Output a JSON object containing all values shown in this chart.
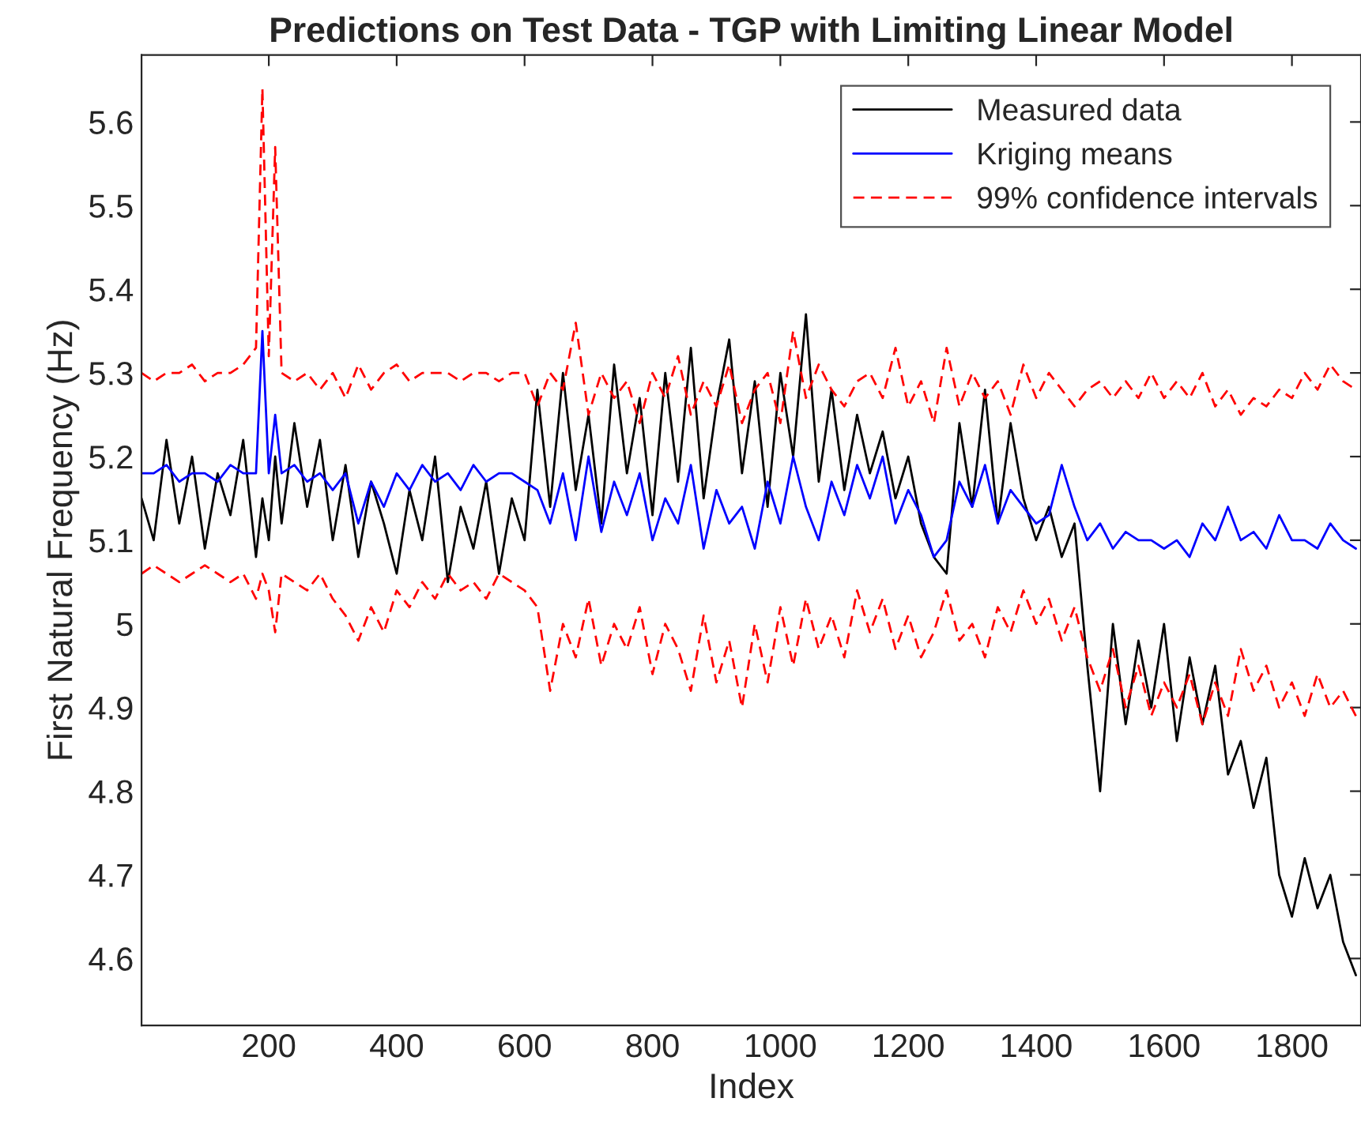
{
  "chart_data": {
    "type": "line",
    "title": "Predictions on Test Data - TGP with Limiting Linear Model",
    "xlabel": "Index",
    "ylabel": "First Natural Frequency (Hz)",
    "x": [
      1,
      20,
      40,
      60,
      80,
      100,
      120,
      140,
      160,
      180,
      190,
      200,
      210,
      220,
      240,
      260,
      280,
      300,
      320,
      340,
      360,
      380,
      400,
      420,
      440,
      460,
      480,
      500,
      520,
      540,
      560,
      580,
      600,
      620,
      640,
      660,
      680,
      700,
      720,
      740,
      760,
      780,
      800,
      820,
      840,
      860,
      880,
      900,
      920,
      940,
      960,
      980,
      1000,
      1020,
      1040,
      1060,
      1080,
      1100,
      1120,
      1140,
      1160,
      1180,
      1200,
      1220,
      1240,
      1260,
      1280,
      1300,
      1320,
      1340,
      1360,
      1380,
      1400,
      1420,
      1440,
      1460,
      1480,
      1500,
      1520,
      1540,
      1560,
      1580,
      1600,
      1620,
      1640,
      1660,
      1680,
      1700,
      1720,
      1740,
      1760,
      1780,
      1800,
      1820,
      1840,
      1860,
      1880,
      1900
    ],
    "series": [
      {
        "name": "Measured data",
        "color": "#000000",
        "line_style": "solid",
        "values": [
          5.15,
          5.1,
          5.22,
          5.12,
          5.2,
          5.09,
          5.18,
          5.13,
          5.22,
          5.08,
          5.15,
          5.1,
          5.2,
          5.12,
          5.24,
          5.14,
          5.22,
          5.1,
          5.19,
          5.08,
          5.17,
          5.12,
          5.06,
          5.16,
          5.1,
          5.2,
          5.05,
          5.14,
          5.09,
          5.17,
          5.06,
          5.15,
          5.1,
          5.28,
          5.14,
          5.3,
          5.16,
          5.25,
          5.12,
          5.31,
          5.18,
          5.27,
          5.13,
          5.3,
          5.17,
          5.33,
          5.15,
          5.26,
          5.34,
          5.18,
          5.29,
          5.14,
          5.3,
          5.2,
          5.37,
          5.17,
          5.28,
          5.16,
          5.25,
          5.18,
          5.23,
          5.15,
          5.2,
          5.12,
          5.08,
          5.06,
          5.24,
          5.14,
          5.28,
          5.12,
          5.24,
          5.15,
          5.1,
          5.14,
          5.08,
          5.12,
          4.95,
          4.8,
          5.0,
          4.88,
          4.98,
          4.9,
          5.0,
          4.86,
          4.96,
          4.88,
          4.95,
          4.82,
          4.86,
          4.78,
          4.84,
          4.7,
          4.65,
          4.72,
          4.66,
          4.7,
          4.62,
          4.58
        ]
      },
      {
        "name": "Kriging means",
        "color": "#0000ff",
        "line_style": "solid",
        "values": [
          5.18,
          5.18,
          5.19,
          5.17,
          5.18,
          5.18,
          5.17,
          5.19,
          5.18,
          5.18,
          5.35,
          5.18,
          5.25,
          5.18,
          5.19,
          5.17,
          5.18,
          5.16,
          5.18,
          5.12,
          5.17,
          5.14,
          5.18,
          5.16,
          5.19,
          5.17,
          5.18,
          5.16,
          5.19,
          5.17,
          5.18,
          5.18,
          5.17,
          5.16,
          5.12,
          5.18,
          5.1,
          5.2,
          5.11,
          5.17,
          5.13,
          5.18,
          5.1,
          5.15,
          5.12,
          5.19,
          5.09,
          5.16,
          5.12,
          5.14,
          5.09,
          5.17,
          5.12,
          5.2,
          5.14,
          5.1,
          5.17,
          5.13,
          5.19,
          5.15,
          5.2,
          5.12,
          5.16,
          5.13,
          5.08,
          5.1,
          5.17,
          5.14,
          5.19,
          5.12,
          5.16,
          5.14,
          5.12,
          5.13,
          5.19,
          5.14,
          5.1,
          5.12,
          5.09,
          5.11,
          5.1,
          5.1,
          5.09,
          5.1,
          5.08,
          5.12,
          5.1,
          5.14,
          5.1,
          5.11,
          5.09,
          5.13,
          5.1,
          5.1,
          5.09,
          5.12,
          5.1,
          5.09
        ]
      },
      {
        "name": "99% confidence intervals",
        "color": "#ff0000",
        "line_style": "dashed",
        "values": [
          5.3,
          5.29,
          5.3,
          5.3,
          5.31,
          5.29,
          5.3,
          5.3,
          5.31,
          5.33,
          5.64,
          5.32,
          5.57,
          5.3,
          5.29,
          5.3,
          5.28,
          5.3,
          5.27,
          5.31,
          5.28,
          5.3,
          5.31,
          5.29,
          5.3,
          5.3,
          5.3,
          5.29,
          5.3,
          5.3,
          5.29,
          5.3,
          5.3,
          5.26,
          5.3,
          5.28,
          5.36,
          5.25,
          5.3,
          5.27,
          5.29,
          5.24,
          5.3,
          5.27,
          5.32,
          5.25,
          5.29,
          5.26,
          5.31,
          5.24,
          5.28,
          5.3,
          5.24,
          5.35,
          5.27,
          5.31,
          5.28,
          5.26,
          5.29,
          5.3,
          5.27,
          5.33,
          5.26,
          5.29,
          5.24,
          5.33,
          5.26,
          5.3,
          5.27,
          5.29,
          5.25,
          5.31,
          5.27,
          5.3,
          5.28,
          5.26,
          5.28,
          5.29,
          5.27,
          5.29,
          5.27,
          5.3,
          5.27,
          5.29,
          5.27,
          5.3,
          5.26,
          5.28,
          5.25,
          5.27,
          5.26,
          5.28,
          5.27,
          5.3,
          5.28,
          5.31,
          5.29,
          5.28
        ]
      },
      {
        "color": "#ff0000",
        "line_style": "dashed",
        "values": [
          5.06,
          5.07,
          5.06,
          5.05,
          5.06,
          5.07,
          5.06,
          5.05,
          5.06,
          5.03,
          5.06,
          5.04,
          4.99,
          5.06,
          5.05,
          5.04,
          5.06,
          5.03,
          5.01,
          4.98,
          5.02,
          4.99,
          5.04,
          5.02,
          5.05,
          5.03,
          5.06,
          5.04,
          5.05,
          5.03,
          5.06,
          5.05,
          5.04,
          5.02,
          4.92,
          5.0,
          4.96,
          5.03,
          4.95,
          5.0,
          4.97,
          5.02,
          4.94,
          5.0,
          4.97,
          4.92,
          5.01,
          4.93,
          4.98,
          4.9,
          5.0,
          4.93,
          5.02,
          4.95,
          5.03,
          4.97,
          5.01,
          4.96,
          5.04,
          4.99,
          5.03,
          4.97,
          5.01,
          4.96,
          4.99,
          5.04,
          4.98,
          5.0,
          4.96,
          5.02,
          4.99,
          5.04,
          5.0,
          5.03,
          4.98,
          5.02,
          4.96,
          4.92,
          4.97,
          4.9,
          4.95,
          4.89,
          4.93,
          4.9,
          4.94,
          4.88,
          4.93,
          4.89,
          4.97,
          4.92,
          4.95,
          4.9,
          4.93,
          4.89,
          4.94,
          4.9,
          4.92,
          4.89
        ]
      }
    ],
    "xlim": [
      1,
      1908
    ],
    "xticks": [
      200,
      400,
      600,
      800,
      1000,
      1200,
      1400,
      1600,
      1800
    ],
    "ylim": [
      4.52,
      5.68
    ],
    "yticks": [
      4.6,
      4.7,
      4.8,
      4.9,
      5,
      5.1,
      5.2,
      5.3,
      5.4,
      5.5,
      5.6
    ],
    "grid": false,
    "legend": "top right"
  }
}
